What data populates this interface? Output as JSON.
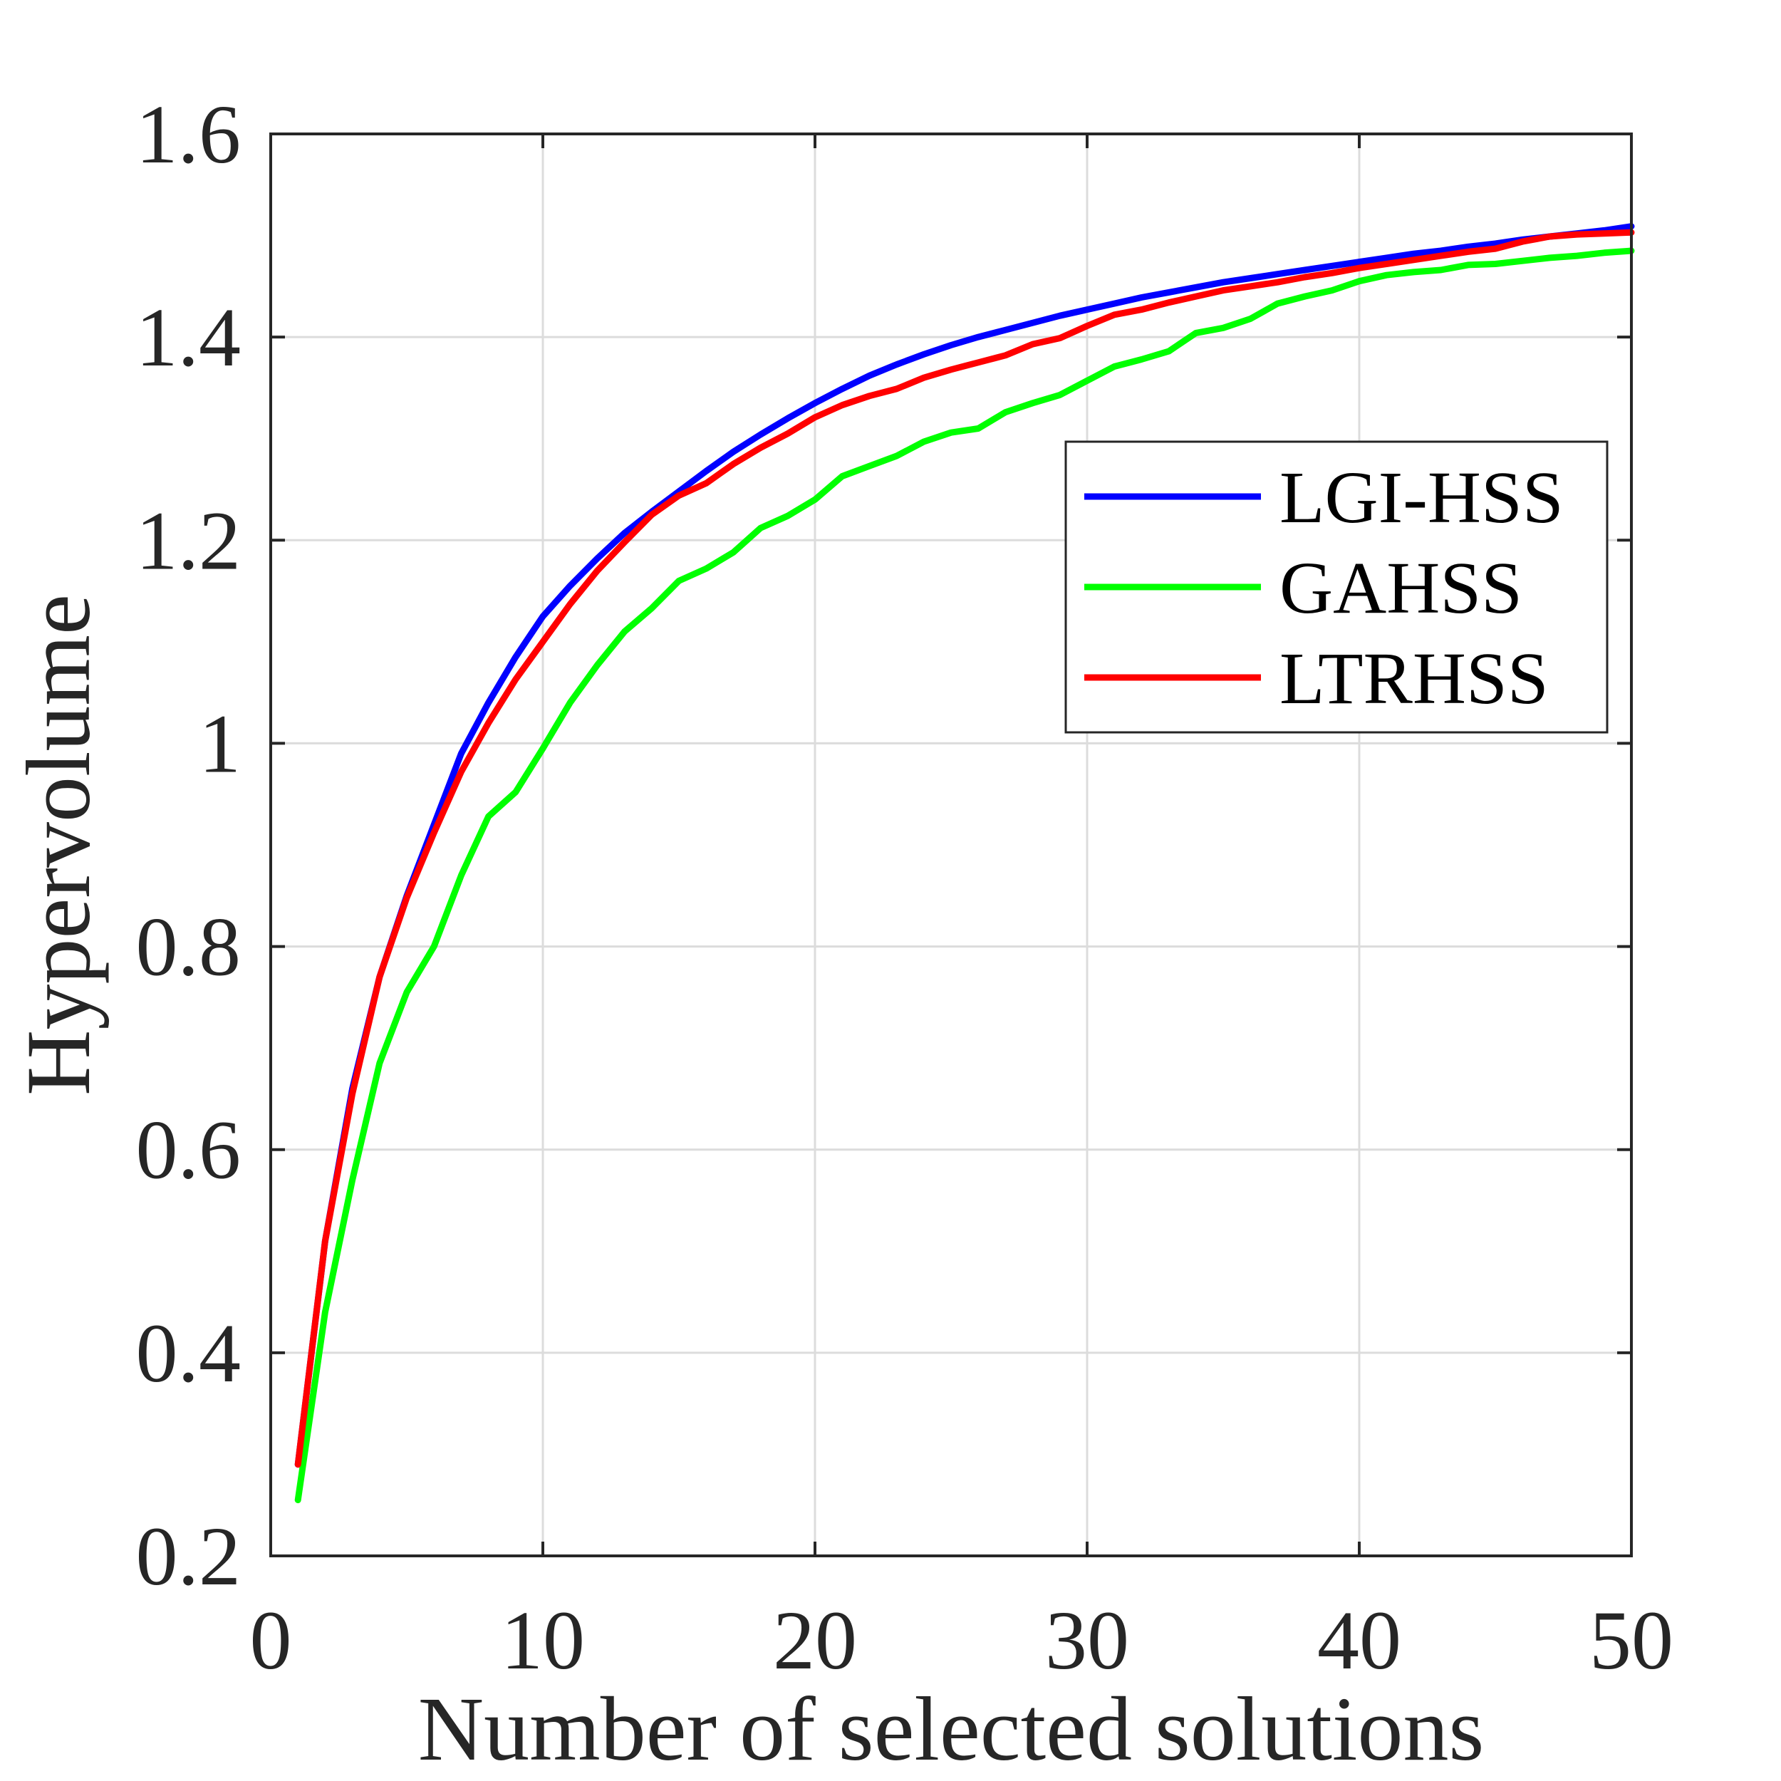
{
  "chart_data": {
    "type": "line",
    "title": "",
    "xlabel": "Number of selected solutions",
    "ylabel": "Hypervolume",
    "xlim": [
      0,
      50
    ],
    "ylim": [
      0.2,
      1.6
    ],
    "xticks": [
      "0",
      "10",
      "20",
      "30",
      "40",
      "50"
    ],
    "yticks": [
      "0.2",
      "0.4",
      "0.6",
      "0.8",
      "1",
      "1.2",
      "1.4",
      "1.6"
    ],
    "grid": true,
    "legend": "right",
    "x": [
      1,
      2,
      3,
      4,
      5,
      6,
      7,
      8,
      9,
      10,
      11,
      12,
      13,
      14,
      15,
      16,
      17,
      18,
      19,
      20,
      21,
      22,
      23,
      24,
      25,
      26,
      27,
      28,
      29,
      30,
      31,
      32,
      33,
      34,
      35,
      36,
      37,
      38,
      39,
      40,
      41,
      42,
      43,
      44,
      45,
      46,
      47,
      48,
      49,
      50
    ],
    "series": [
      {
        "name": "LGI-HSS",
        "color": "#0000ff",
        "values": [
          0.29,
          0.51,
          0.66,
          0.77,
          0.85,
          0.92,
          0.99,
          1.04,
          1.085,
          1.125,
          1.155,
          1.182,
          1.207,
          1.228,
          1.248,
          1.268,
          1.287,
          1.304,
          1.32,
          1.335,
          1.349,
          1.362,
          1.373,
          1.383,
          1.392,
          1.4,
          1.407,
          1.414,
          1.421,
          1.427,
          1.433,
          1.439,
          1.444,
          1.449,
          1.454,
          1.458,
          1.462,
          1.466,
          1.47,
          1.474,
          1.478,
          1.482,
          1.485,
          1.489,
          1.492,
          1.496,
          1.499,
          1.502,
          1.505,
          1.509
        ]
      },
      {
        "name": "GAHSS",
        "color": "#00ff00",
        "values": [
          0.255,
          0.44,
          0.57,
          0.685,
          0.755,
          0.8,
          0.87,
          0.928,
          0.952,
          0.995,
          1.04,
          1.077,
          1.11,
          1.133,
          1.16,
          1.172,
          1.188,
          1.212,
          1.224,
          1.24,
          1.263,
          1.273,
          1.283,
          1.297,
          1.306,
          1.31,
          1.326,
          1.335,
          1.343,
          1.357,
          1.371,
          1.378,
          1.386,
          1.404,
          1.409,
          1.418,
          1.433,
          1.44,
          1.446,
          1.455,
          1.461,
          1.464,
          1.466,
          1.471,
          1.472,
          1.475,
          1.478,
          1.48,
          1.483,
          1.485
        ]
      },
      {
        "name": "LTRHSS",
        "color": "#ff0000",
        "values": [
          0.29,
          0.51,
          0.655,
          0.77,
          0.848,
          0.912,
          0.972,
          1.02,
          1.063,
          1.1,
          1.137,
          1.17,
          1.198,
          1.225,
          1.244,
          1.256,
          1.275,
          1.291,
          1.305,
          1.321,
          1.333,
          1.342,
          1.349,
          1.36,
          1.368,
          1.375,
          1.382,
          1.393,
          1.399,
          1.411,
          1.422,
          1.427,
          1.434,
          1.44,
          1.446,
          1.45,
          1.454,
          1.459,
          1.463,
          1.468,
          1.472,
          1.476,
          1.48,
          1.484,
          1.487,
          1.494,
          1.499,
          1.501,
          1.502,
          1.503
        ]
      }
    ]
  }
}
